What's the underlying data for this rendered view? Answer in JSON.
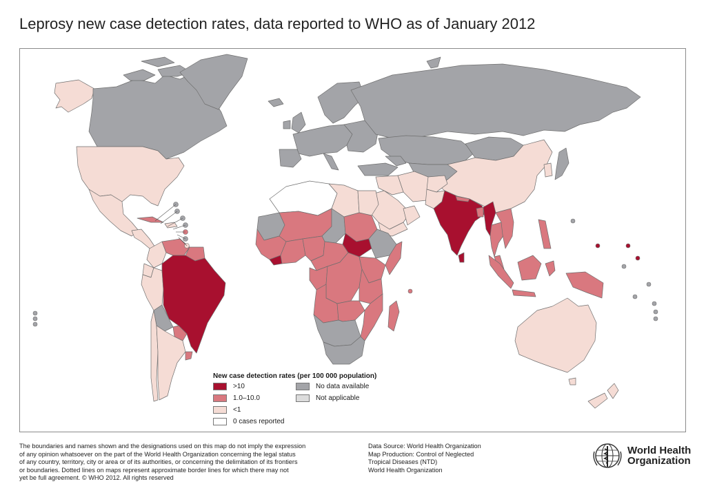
{
  "title": "Leprosy new case detection rates, data reported to WHO as of January 2012",
  "colors": {
    "gt10": "#a8102f",
    "mid": "#d9787f",
    "lt1": "#f5dcd5",
    "zero": "#ffffff",
    "nodata": "#a3a4a8",
    "notapplicable": "#dcdcdc",
    "border": "#6e6e6e"
  },
  "legend": {
    "title": "New case detection rates (per 100 000 population)",
    "items": [
      {
        "label": ">10",
        "color_key": "gt10"
      },
      {
        "label": "1.0–10.0",
        "color_key": "mid"
      },
      {
        "label": "<1",
        "color_key": "lt1"
      },
      {
        "label": "0 cases reported",
        "color_key": "zero"
      },
      {
        "label": "No data available",
        "color_key": "nodata"
      },
      {
        "label": "Not applicable",
        "color_key": "notapplicable"
      }
    ]
  },
  "disclaimer": [
    "The boundaries and names shown and the designations used on this map do not imply the expression",
    "of any opinion whatsoever on the part of the World Health Organization concerning the legal status",
    "of any country, territory, city or area or of its authorities, or concerning the delimitation of its frontiers",
    "or boundaries. Dotted lines on maps represent approximate border lines for which there may not",
    "yet be full agreement. © WHO 2012. All rights reserved"
  ],
  "source": [
    "Data Source: World Health Organization",
    "Map Production: Control of Neglected",
    "Tropical Diseases (NTD)",
    "World Health Organization"
  ],
  "logo": {
    "line1": "World Health",
    "line2": "Organization"
  }
}
